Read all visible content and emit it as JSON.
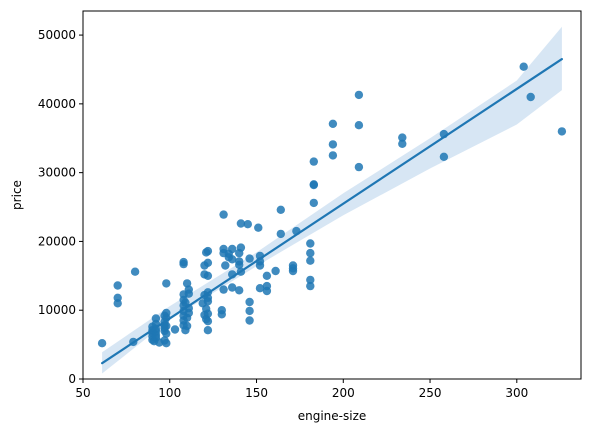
{
  "chart_data": {
    "type": "scatter",
    "xlabel": "engine-size",
    "ylabel": "price",
    "xlim": [
      50,
      337
    ],
    "ylim": [
      0,
      53500
    ],
    "xticks": [
      50,
      100,
      150,
      200,
      250,
      300
    ],
    "yticks": [
      0,
      10000,
      20000,
      30000,
      40000,
      50000
    ],
    "grid": false,
    "colors": {
      "point": "#1f77b4",
      "line": "#1f77b4",
      "band": "#a6c8e6"
    },
    "regression": {
      "x": [
        61,
        326
      ],
      "y": [
        2300,
        46500
      ]
    },
    "confidence_band": {
      "x": [
        61,
        100,
        150,
        200,
        250,
        300,
        326
      ],
      "lower": [
        800,
        8600,
        16400,
        23800,
        30600,
        37000,
        42000
      ],
      "upper": [
        3900,
        10600,
        18400,
        27000,
        35000,
        43400,
        51200
      ]
    },
    "points": [
      {
        "x": 61,
        "y": 5200
      },
      {
        "x": 70,
        "y": 13600
      },
      {
        "x": 70,
        "y": 11800
      },
      {
        "x": 70,
        "y": 11000
      },
      {
        "x": 79,
        "y": 5400
      },
      {
        "x": 80,
        "y": 15600
      },
      {
        "x": 90,
        "y": 5700
      },
      {
        "x": 90,
        "y": 6200
      },
      {
        "x": 90,
        "y": 6700
      },
      {
        "x": 90,
        "y": 7100
      },
      {
        "x": 90,
        "y": 7600
      },
      {
        "x": 91,
        "y": 5500
      },
      {
        "x": 92,
        "y": 6000
      },
      {
        "x": 92,
        "y": 6400
      },
      {
        "x": 92,
        "y": 6900
      },
      {
        "x": 92,
        "y": 7300
      },
      {
        "x": 92,
        "y": 8000
      },
      {
        "x": 92,
        "y": 8800
      },
      {
        "x": 94,
        "y": 5300
      },
      {
        "x": 97,
        "y": 5600
      },
      {
        "x": 97,
        "y": 7000
      },
      {
        "x": 97,
        "y": 7400
      },
      {
        "x": 97,
        "y": 7800
      },
      {
        "x": 97,
        "y": 8300
      },
      {
        "x": 97,
        "y": 9200
      },
      {
        "x": 98,
        "y": 5200
      },
      {
        "x": 98,
        "y": 6600
      },
      {
        "x": 98,
        "y": 7700
      },
      {
        "x": 98,
        "y": 8900
      },
      {
        "x": 98,
        "y": 9600
      },
      {
        "x": 98,
        "y": 13900
      },
      {
        "x": 103,
        "y": 7200
      },
      {
        "x": 108,
        "y": 7800
      },
      {
        "x": 108,
        "y": 8500
      },
      {
        "x": 108,
        "y": 9200
      },
      {
        "x": 108,
        "y": 9900
      },
      {
        "x": 108,
        "y": 10700
      },
      {
        "x": 108,
        "y": 11500
      },
      {
        "x": 108,
        "y": 12300
      },
      {
        "x": 108,
        "y": 16700
      },
      {
        "x": 108,
        "y": 17000
      },
      {
        "x": 109,
        "y": 7100
      },
      {
        "x": 109,
        "y": 11100
      },
      {
        "x": 110,
        "y": 8900
      },
      {
        "x": 110,
        "y": 13900
      },
      {
        "x": 110,
        "y": 7700
      },
      {
        "x": 111,
        "y": 12400
      },
      {
        "x": 111,
        "y": 9600
      },
      {
        "x": 111,
        "y": 10300
      },
      {
        "x": 111,
        "y": 13000
      },
      {
        "x": 119,
        "y": 11000
      },
      {
        "x": 120,
        "y": 12200
      },
      {
        "x": 120,
        "y": 15200
      },
      {
        "x": 120,
        "y": 16500
      },
      {
        "x": 120,
        "y": 9300
      },
      {
        "x": 121,
        "y": 18400
      },
      {
        "x": 121,
        "y": 10200
      },
      {
        "x": 121,
        "y": 8700
      },
      {
        "x": 122,
        "y": 7100
      },
      {
        "x": 122,
        "y": 8400
      },
      {
        "x": 122,
        "y": 9500
      },
      {
        "x": 122,
        "y": 11300
      },
      {
        "x": 122,
        "y": 11800
      },
      {
        "x": 122,
        "y": 12600
      },
      {
        "x": 122,
        "y": 15000
      },
      {
        "x": 122,
        "y": 16900
      },
      {
        "x": 122,
        "y": 18600
      },
      {
        "x": 130,
        "y": 9400
      },
      {
        "x": 130,
        "y": 10000
      },
      {
        "x": 131,
        "y": 13000
      },
      {
        "x": 131,
        "y": 18900
      },
      {
        "x": 131,
        "y": 18300
      },
      {
        "x": 131,
        "y": 23900
      },
      {
        "x": 132,
        "y": 16500
      },
      {
        "x": 134,
        "y": 17700
      },
      {
        "x": 134,
        "y": 18200
      },
      {
        "x": 136,
        "y": 15200
      },
      {
        "x": 136,
        "y": 18900
      },
      {
        "x": 136,
        "y": 17400
      },
      {
        "x": 136,
        "y": 13300
      },
      {
        "x": 140,
        "y": 16600
      },
      {
        "x": 140,
        "y": 17100
      },
      {
        "x": 140,
        "y": 18300
      },
      {
        "x": 140,
        "y": 12900
      },
      {
        "x": 141,
        "y": 19100
      },
      {
        "x": 141,
        "y": 22600
      },
      {
        "x": 141,
        "y": 15600
      },
      {
        "x": 145,
        "y": 22500
      },
      {
        "x": 146,
        "y": 11200
      },
      {
        "x": 146,
        "y": 9900
      },
      {
        "x": 146,
        "y": 8500
      },
      {
        "x": 146,
        "y": 17500
      },
      {
        "x": 151,
        "y": 22000
      },
      {
        "x": 152,
        "y": 13200
      },
      {
        "x": 152,
        "y": 17100
      },
      {
        "x": 152,
        "y": 17900
      },
      {
        "x": 152,
        "y": 16500
      },
      {
        "x": 156,
        "y": 12800
      },
      {
        "x": 156,
        "y": 13500
      },
      {
        "x": 156,
        "y": 15000
      },
      {
        "x": 161,
        "y": 15700
      },
      {
        "x": 164,
        "y": 21100
      },
      {
        "x": 164,
        "y": 24600
      },
      {
        "x": 171,
        "y": 15700
      },
      {
        "x": 171,
        "y": 16100
      },
      {
        "x": 171,
        "y": 16500
      },
      {
        "x": 173,
        "y": 21500
      },
      {
        "x": 181,
        "y": 13500
      },
      {
        "x": 181,
        "y": 14400
      },
      {
        "x": 181,
        "y": 17200
      },
      {
        "x": 181,
        "y": 18300
      },
      {
        "x": 181,
        "y": 19700
      },
      {
        "x": 183,
        "y": 25600
      },
      {
        "x": 183,
        "y": 28200
      },
      {
        "x": 183,
        "y": 31600
      },
      {
        "x": 183,
        "y": 28300
      },
      {
        "x": 194,
        "y": 32500
      },
      {
        "x": 194,
        "y": 34100
      },
      {
        "x": 194,
        "y": 37100
      },
      {
        "x": 209,
        "y": 30800
      },
      {
        "x": 209,
        "y": 36900
      },
      {
        "x": 209,
        "y": 41300
      },
      {
        "x": 234,
        "y": 34200
      },
      {
        "x": 234,
        "y": 35100
      },
      {
        "x": 258,
        "y": 32300
      },
      {
        "x": 258,
        "y": 35600
      },
      {
        "x": 304,
        "y": 45400
      },
      {
        "x": 308,
        "y": 41000
      },
      {
        "x": 326,
        "y": 36000
      }
    ]
  }
}
